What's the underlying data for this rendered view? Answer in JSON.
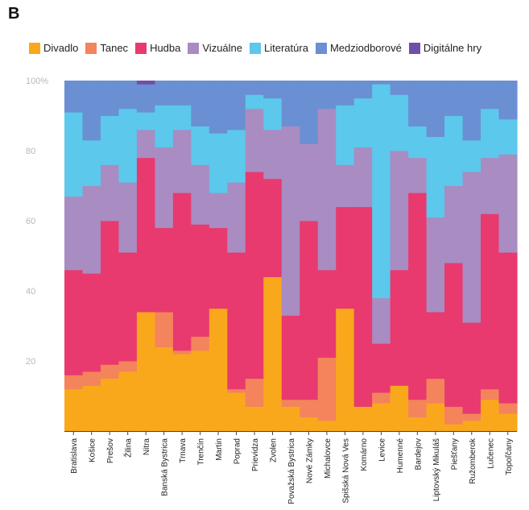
{
  "panel_label": "B",
  "chart_data": {
    "type": "bar",
    "stacked": true,
    "normalized": true,
    "ylim": [
      0,
      100
    ],
    "yticks": [
      "20",
      "40",
      "60",
      "80",
      "100%"
    ],
    "grid": false,
    "legend_position": "top",
    "categories": [
      "Bratislava",
      "Košice",
      "Prešov",
      "Žilina",
      "Nitra",
      "Banská Bystrica",
      "Trnava",
      "Trenčín",
      "Martin",
      "Poprad",
      "Prievidza",
      "Zvolen",
      "Považská Bystrica",
      "Nové Zámky",
      "Michalovce",
      "Spišská Nová Ves",
      "Komárno",
      "Levice",
      "Humenné",
      "Bardejov",
      "Liptovský Mikuláš",
      "Piešťany",
      "Ružomberok",
      "Lučenec",
      "Topoľčany"
    ],
    "series": [
      {
        "name": "Divadlo",
        "color": "#f9a81b",
        "values": [
          12,
          13,
          15,
          17,
          34,
          24,
          22,
          23,
          35,
          11,
          7,
          44,
          7,
          4,
          3,
          35,
          7,
          8,
          13,
          4,
          8,
          2,
          3,
          9,
          5
        ]
      },
      {
        "name": "Tanec",
        "color": "#f4845b",
        "values": [
          4,
          4,
          4,
          3,
          0,
          10,
          1,
          4,
          0,
          1,
          8,
          0,
          2,
          5,
          18,
          0,
          0,
          3,
          0,
          5,
          7,
          5,
          2,
          3,
          3
        ]
      },
      {
        "name": "Hudba",
        "color": "#e83a6e",
        "values": [
          30,
          28,
          41,
          31,
          44,
          24,
          45,
          32,
          23,
          39,
          59,
          28,
          24,
          51,
          25,
          29,
          57,
          14,
          33,
          59,
          19,
          41,
          26,
          50,
          43
        ]
      },
      {
        "name": "Vizuálne",
        "color": "#a98cc2",
        "values": [
          21,
          25,
          16,
          20,
          8,
          23,
          18,
          17,
          10,
          20,
          18,
          14,
          54,
          22,
          46,
          12,
          17,
          13,
          34,
          10,
          27,
          22,
          43,
          16,
          28
        ]
      },
      {
        "name": "Literatúra",
        "color": "#5bc8ec",
        "values": [
          24,
          13,
          14,
          21,
          5,
          12,
          7,
          11,
          17,
          15,
          4,
          9,
          0,
          0,
          0,
          17,
          14,
          61,
          16,
          9,
          23,
          20,
          9,
          14,
          10
        ]
      },
      {
        "name": "Medziodborové",
        "color": "#6b8fd3",
        "values": [
          9,
          17,
          10,
          8,
          8,
          7,
          7,
          13,
          15,
          14,
          4,
          5,
          13,
          18,
          8,
          7,
          5,
          1,
          4,
          13,
          16,
          10,
          17,
          8,
          11
        ]
      },
      {
        "name": "Digitálne hry",
        "color": "#6f4fa8",
        "values": [
          0,
          0,
          0,
          0,
          1,
          0,
          0,
          0,
          0,
          0,
          0,
          0,
          0,
          0,
          0,
          0,
          0,
          0,
          0,
          0,
          0,
          0,
          0,
          0,
          0
        ]
      }
    ]
  }
}
